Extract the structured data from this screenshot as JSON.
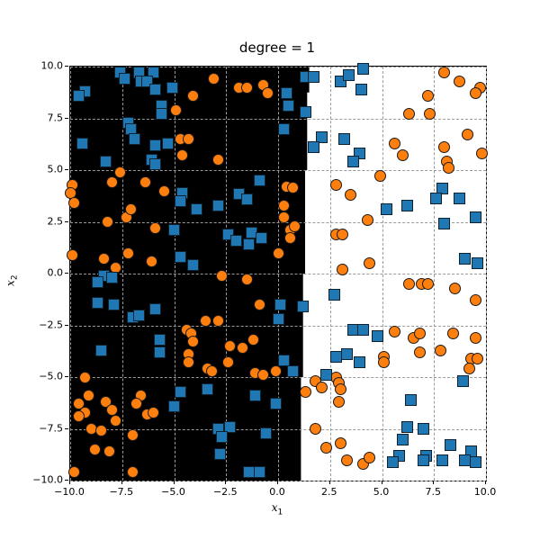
{
  "title": "degree = 1",
  "xlabel_base": "x",
  "xlabel_sub": "1",
  "ylabel_base": "x",
  "ylabel_sub": "2",
  "chart_data": {
    "type": "scatter",
    "title": "degree = 1",
    "xlabel": "x_1",
    "ylabel": "x_2",
    "xlim": [
      -10,
      10
    ],
    "ylim": [
      -10,
      10
    ],
    "grid": "dashed",
    "grid_color": "#9a9a9a",
    "background_split": {
      "description": "binary decision regions: black fill left of near-vertical boundary, white right",
      "black_region_color": "#000000",
      "white_region_color": "#ffffff",
      "boundary_x_top": 1.5,
      "boundary_x_bottom": 1.05,
      "boundary_steps": [
        {
          "x": 1.5,
          "y_from": 10,
          "y_to": 8.75
        },
        {
          "x": 1.4,
          "y_from": 8.75,
          "y_to": 5.0
        },
        {
          "x": 1.3,
          "y_from": 5.0,
          "y_to": 0.0
        },
        {
          "x": 1.2,
          "y_from": 0.0,
          "y_to": -5.0
        },
        {
          "x": 1.1,
          "y_from": -5.0,
          "y_to": -10.0
        }
      ]
    },
    "xticks": [
      -10.0,
      -7.5,
      -5.0,
      -2.5,
      0.0,
      2.5,
      5.0,
      7.5,
      10.0
    ],
    "xtick_labels": [
      "−10.0",
      "−7.5",
      "−5.0",
      "−2.5",
      "0.0",
      "2.5",
      "5.0",
      "7.5",
      "10.0"
    ],
    "yticks": [
      -10.0,
      -7.5,
      -5.0,
      -2.5,
      0.0,
      2.5,
      5.0,
      7.5,
      10.0
    ],
    "ytick_labels": [
      "−10.0",
      "−7.5",
      "−5.0",
      "−2.5",
      "0.0",
      "2.5",
      "5.0",
      "7.5",
      "10.0"
    ],
    "series": [
      {
        "name": "class-orange-circles",
        "marker": "circle",
        "color": "#ff7f0e",
        "edge_color": "#1a1a1a",
        "points": [
          [
            -4.1,
            8.6
          ],
          [
            -4.9,
            7.9
          ],
          [
            -4.7,
            6.5
          ],
          [
            -4.3,
            6.5
          ],
          [
            -4.6,
            5.7
          ],
          [
            -7.6,
            4.9
          ],
          [
            -8.0,
            4.4
          ],
          [
            -6.4,
            4.4
          ],
          [
            -9.9,
            4.3
          ],
          [
            -10.0,
            3.9
          ],
          [
            -9.8,
            3.4
          ],
          [
            -5.5,
            4.0
          ],
          [
            -3.1,
            9.4
          ],
          [
            -1.9,
            9.0
          ],
          [
            -1.5,
            9.0
          ],
          [
            -0.7,
            9.1
          ],
          [
            -0.5,
            8.7
          ],
          [
            -2.9,
            5.5
          ],
          [
            0.4,
            4.2
          ],
          [
            0.7,
            4.15
          ],
          [
            2.8,
            4.3
          ],
          [
            3.5,
            3.8
          ],
          [
            8.0,
            9.7
          ],
          [
            8.7,
            9.3
          ],
          [
            9.7,
            9.0
          ],
          [
            9.5,
            8.7
          ],
          [
            7.2,
            8.6
          ],
          [
            6.3,
            7.7
          ],
          [
            7.3,
            7.7
          ],
          [
            9.1,
            6.7
          ],
          [
            5.6,
            6.3
          ],
          [
            8.0,
            6.1
          ],
          [
            6.0,
            5.7
          ],
          [
            9.8,
            5.8
          ],
          [
            8.1,
            5.4
          ],
          [
            8.2,
            5.1
          ],
          [
            4.9,
            4.7
          ],
          [
            -8.2,
            2.5
          ],
          [
            -7.3,
            2.7
          ],
          [
            -7.1,
            3.1
          ],
          [
            -5.9,
            2.2
          ],
          [
            -9.9,
            0.9
          ],
          [
            -8.4,
            0.7
          ],
          [
            -7.2,
            1.0
          ],
          [
            -6.1,
            0.6
          ],
          [
            -7.8,
            0.3
          ],
          [
            -3.5,
            -2.3
          ],
          [
            -4.4,
            -2.7
          ],
          [
            -4.2,
            -2.9
          ],
          [
            0.3,
            3.3
          ],
          [
            0.3,
            2.7
          ],
          [
            0.6,
            2.1
          ],
          [
            0.8,
            2.3
          ],
          [
            0.6,
            1.7
          ],
          [
            0.0,
            1.0
          ],
          [
            2.8,
            1.9
          ],
          [
            3.1,
            1.9
          ],
          [
            3.1,
            0.2
          ],
          [
            -2.7,
            -0.1
          ],
          [
            -1.5,
            -0.3
          ],
          [
            -0.9,
            -1.5
          ],
          [
            -2.9,
            -2.3
          ],
          [
            -1.2,
            -3.2
          ],
          [
            4.3,
            2.6
          ],
          [
            4.4,
            0.5
          ],
          [
            6.3,
            -0.5
          ],
          [
            6.9,
            -0.5
          ],
          [
            7.2,
            -0.5
          ],
          [
            8.5,
            -0.7
          ],
          [
            9.5,
            -1.3
          ],
          [
            5.6,
            -2.8
          ],
          [
            6.5,
            -3.1
          ],
          [
            6.8,
            -2.9
          ],
          [
            8.4,
            -2.9
          ],
          [
            9.5,
            -3.1
          ],
          [
            -4.1,
            -3.3
          ],
          [
            -4.3,
            -3.9
          ],
          [
            -4.3,
            -4.3
          ],
          [
            -3.4,
            -4.6
          ],
          [
            -9.3,
            -5.0
          ],
          [
            -9.1,
            -5.9
          ],
          [
            -9.6,
            -6.3
          ],
          [
            -9.3,
            -6.7
          ],
          [
            -9.6,
            -6.9
          ],
          [
            -8.3,
            -6.2
          ],
          [
            -8.0,
            -6.6
          ],
          [
            -7.8,
            -7.1
          ],
          [
            -9.0,
            -7.5
          ],
          [
            -8.5,
            -7.6
          ],
          [
            -6.6,
            -5.9
          ],
          [
            -6.8,
            -6.3
          ],
          [
            -6.3,
            -6.8
          ],
          [
            -6.0,
            -6.7
          ],
          [
            -7.0,
            -7.8
          ],
          [
            -8.8,
            -8.5
          ],
          [
            -8.1,
            -8.6
          ],
          [
            -9.8,
            -9.6
          ],
          [
            -7.0,
            -9.6
          ],
          [
            -2.3,
            -3.5
          ],
          [
            -1.7,
            -3.6
          ],
          [
            -2.4,
            -4.3
          ],
          [
            -3.2,
            -4.7
          ],
          [
            -1.1,
            -4.8
          ],
          [
            -0.7,
            -4.9
          ],
          [
            -0.1,
            -4.7
          ],
          [
            1.3,
            -5.7
          ],
          [
            1.8,
            -5.2
          ],
          [
            2.1,
            -5.5
          ],
          [
            2.8,
            -5.0
          ],
          [
            2.9,
            -5.3
          ],
          [
            3.0,
            -5.6
          ],
          [
            2.9,
            -6.2
          ],
          [
            1.8,
            -7.5
          ],
          [
            2.3,
            -8.4
          ],
          [
            3.0,
            -8.2
          ],
          [
            3.3,
            -9.0
          ],
          [
            5.1,
            -4.0
          ],
          [
            5.1,
            -4.3
          ],
          [
            6.8,
            -3.8
          ],
          [
            7.8,
            -3.7
          ],
          [
            9.3,
            -4.1
          ],
          [
            9.6,
            -4.1
          ],
          [
            9.2,
            -4.6
          ],
          [
            4.1,
            -9.2
          ],
          [
            4.4,
            -8.9
          ]
        ]
      },
      {
        "name": "class-blue-squares",
        "marker": "square",
        "color": "#1f77b4",
        "edge_color": "#10222e",
        "points": [
          [
            -9.3,
            8.8
          ],
          [
            -9.6,
            8.6
          ],
          [
            -7.6,
            9.7
          ],
          [
            -7.4,
            9.4
          ],
          [
            -6.7,
            9.7
          ],
          [
            -6.0,
            9.7
          ],
          [
            -6.6,
            9.3
          ],
          [
            -6.3,
            9.3
          ],
          [
            -5.9,
            8.9
          ],
          [
            -5.1,
            9.0
          ],
          [
            -5.6,
            8.1
          ],
          [
            -5.6,
            7.7
          ],
          [
            -7.2,
            7.3
          ],
          [
            -7.1,
            7.0
          ],
          [
            -6.9,
            6.5
          ],
          [
            -9.4,
            6.3
          ],
          [
            -5.9,
            6.2
          ],
          [
            -5.3,
            6.3
          ],
          [
            -8.3,
            5.4
          ],
          [
            -6.1,
            5.5
          ],
          [
            -5.9,
            5.3
          ],
          [
            -4.6,
            3.9
          ],
          [
            -4.7,
            3.5
          ],
          [
            1.3,
            9.5
          ],
          [
            1.7,
            9.5
          ],
          [
            3.0,
            9.3
          ],
          [
            3.4,
            9.6
          ],
          [
            0.4,
            8.7
          ],
          [
            0.5,
            8.1
          ],
          [
            1.3,
            7.8
          ],
          [
            0.3,
            7.0
          ],
          [
            2.1,
            6.6
          ],
          [
            1.7,
            6.1
          ],
          [
            3.2,
            6.5
          ],
          [
            -0.9,
            4.5
          ],
          [
            -1.9,
            3.85
          ],
          [
            -1.5,
            3.6
          ],
          [
            4.1,
            9.9
          ],
          [
            4.0,
            8.9
          ],
          [
            3.9,
            5.8
          ],
          [
            3.6,
            5.4
          ],
          [
            7.9,
            4.1
          ],
          [
            7.6,
            3.65
          ],
          [
            8.7,
            3.65
          ],
          [
            -3.9,
            3.1
          ],
          [
            -5.0,
            2.1
          ],
          [
            -8.4,
            -0.1
          ],
          [
            -8.0,
            -0.2
          ],
          [
            -8.7,
            -0.4
          ],
          [
            -4.7,
            0.8
          ],
          [
            -4.1,
            0.4
          ],
          [
            -8.7,
            -1.4
          ],
          [
            -7.9,
            -1.5
          ],
          [
            -7.0,
            -2.1
          ],
          [
            -6.7,
            -2.0
          ],
          [
            -5.9,
            -1.7
          ],
          [
            -2.9,
            3.3
          ],
          [
            -2.4,
            1.9
          ],
          [
            -2.0,
            1.6
          ],
          [
            -1.3,
            2.0
          ],
          [
            -1.4,
            1.4
          ],
          [
            -0.8,
            1.7
          ],
          [
            2.7,
            -1.0
          ],
          [
            0.1,
            -1.5
          ],
          [
            1.2,
            -1.6
          ],
          [
            0.0,
            -2.2
          ],
          [
            5.2,
            3.1
          ],
          [
            6.2,
            3.3
          ],
          [
            9.5,
            2.7
          ],
          [
            8.0,
            2.4
          ],
          [
            9.0,
            0.7
          ],
          [
            9.6,
            0.5
          ],
          [
            3.6,
            -2.7
          ],
          [
            4.1,
            -2.7
          ],
          [
            4.8,
            -3.0
          ],
          [
            -8.5,
            -3.7
          ],
          [
            -5.7,
            -3.2
          ],
          [
            -5.7,
            -3.8
          ],
          [
            -4.7,
            -5.7
          ],
          [
            -3.4,
            -5.6
          ],
          [
            -5.0,
            -6.4
          ],
          [
            0.3,
            -4.2
          ],
          [
            0.7,
            -4.7
          ],
          [
            -1.1,
            -5.9
          ],
          [
            -0.1,
            -6.3
          ],
          [
            -2.9,
            -7.5
          ],
          [
            -2.3,
            -7.4
          ],
          [
            -2.7,
            -7.9
          ],
          [
            -2.8,
            -8.7
          ],
          [
            -0.6,
            -7.7
          ],
          [
            -1.4,
            -9.6
          ],
          [
            -0.9,
            -9.6
          ],
          [
            2.8,
            -4.0
          ],
          [
            3.3,
            -3.9
          ],
          [
            3.9,
            -4.3
          ],
          [
            2.3,
            -4.9
          ],
          [
            6.4,
            -6.1
          ],
          [
            6.2,
            -7.4
          ],
          [
            6.0,
            -8.0
          ],
          [
            7.0,
            -7.5
          ],
          [
            7.1,
            -8.8
          ],
          [
            7.0,
            -9.0
          ],
          [
            5.8,
            -8.8
          ],
          [
            5.5,
            -9.1
          ],
          [
            8.3,
            -8.3
          ],
          [
            7.9,
            -9.0
          ],
          [
            9.3,
            -8.6
          ],
          [
            9.0,
            -9.0
          ],
          [
            9.5,
            -9.1
          ],
          [
            8.9,
            -5.2
          ]
        ]
      }
    ]
  }
}
